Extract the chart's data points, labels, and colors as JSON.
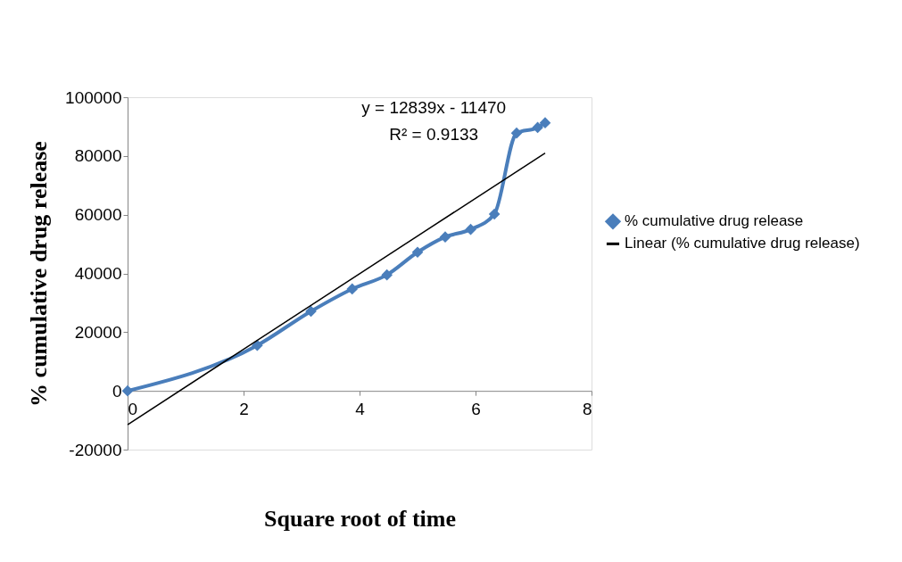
{
  "chart_data": {
    "type": "line",
    "xlabel": "Square root of time",
    "ylabel": "% cumulative drug release",
    "xlim": [
      0,
      8
    ],
    "xticks": [
      0,
      2,
      4,
      6,
      8
    ],
    "ylim": [
      -20000,
      100000
    ],
    "yticks": [
      -20000,
      0,
      20000,
      40000,
      60000,
      80000,
      100000
    ],
    "grid": false,
    "legend": "right",
    "marker": "diamond",
    "line_style": "solid",
    "x": [
      0,
      2.236,
      3.162,
      3.873,
      4.472,
      5,
      5.477,
      5.916,
      6.325,
      6.708,
      7.071,
      7.2
    ],
    "series": [
      {
        "name": "% cumulative drug release",
        "color": "#4a7ebb",
        "values": [
          0,
          15500,
          27100,
          34700,
          39500,
          47200,
          52400,
          55000,
          60200,
          87800,
          89700,
          91300
        ]
      },
      {
        "name": "Linear (% cumulative drug release)",
        "color": "#000000",
        "type": "line",
        "marker": "none",
        "x": [
          0,
          7.2
        ],
        "values": [
          -11500,
          81000
        ]
      }
    ],
    "annotations": [
      "y = 12839x - 11470",
      "R² = 0.9133"
    ]
  }
}
